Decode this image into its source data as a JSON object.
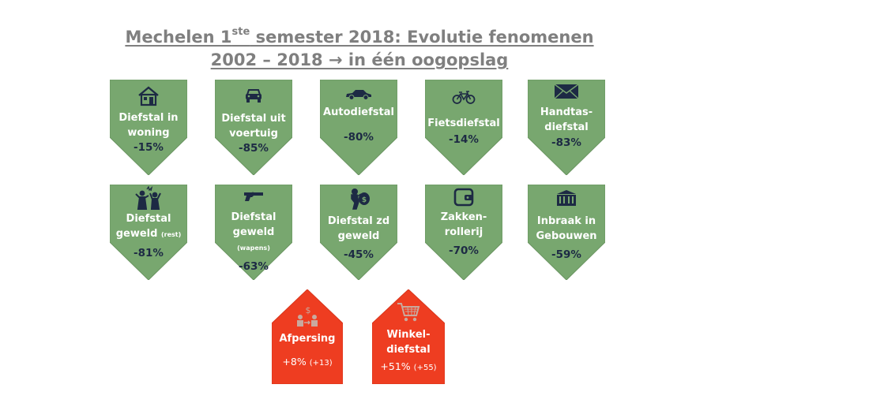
{
  "title": {
    "line1_pre": "Mechelen 1",
    "line1_sup": "ste",
    "line1_post": " semester 2018: Evolutie fenomenen",
    "line2": "2002 – 2018 → in één oogopslag"
  },
  "colors": {
    "decrease": "#78a76f",
    "increase": "#ee3d21",
    "value_text": "#1d2a44"
  },
  "decreasing": [
    {
      "icon": "house-icon",
      "label": "Diefstal in woning",
      "label_note": "",
      "value": "-15%"
    },
    {
      "icon": "car-front-icon",
      "label": "Diefstal uit voertuig",
      "label_note": "",
      "value": "-85%"
    },
    {
      "icon": "car-side-icon",
      "label": "Autodiefstal",
      "label_note": "",
      "value": "-80%"
    },
    {
      "icon": "bicycle-icon",
      "label": "Fietsdiefstal",
      "label_note": "",
      "value": "-14%"
    },
    {
      "icon": "envelope-icon",
      "label": "Handtas-diefstal",
      "label_note": "",
      "value": "-83%"
    },
    {
      "icon": "assault-icon",
      "label": "Diefstal geweld",
      "label_note": "(rest)",
      "value": "-81%"
    },
    {
      "icon": "revolver-icon",
      "label": "Diefstal geweld",
      "label_note": "(wapens)",
      "value": "-63%"
    },
    {
      "icon": "thief-icon",
      "label": "Diefstal zd geweld",
      "label_note": "",
      "value": "-45%"
    },
    {
      "icon": "wallet-icon",
      "label": "Zakken-rollerij",
      "label_note": "",
      "value": "-70%"
    },
    {
      "icon": "building-icon",
      "label": "Inbraak in Gebouwen",
      "label_note": "",
      "value": "-59%"
    }
  ],
  "increasing": [
    {
      "icon": "extortion-icon",
      "label": "Afpersing",
      "value": "+8%",
      "value_note": "(+13)"
    },
    {
      "icon": "shopping-cart-icon",
      "label": "Winkel-diefstal",
      "value": "+51%",
      "value_note": "(+55)"
    }
  ]
}
